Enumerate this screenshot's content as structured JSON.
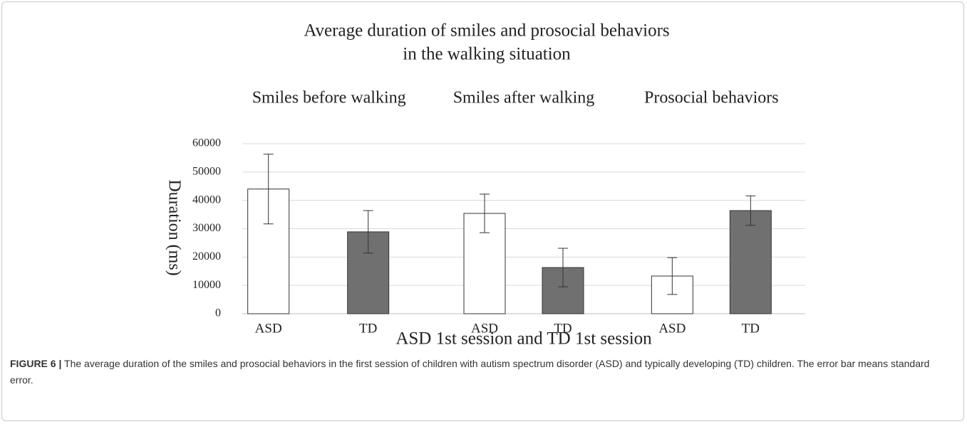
{
  "chart_data": {
    "type": "bar",
    "title": [
      "Average duration of smiles and prosocial behaviors",
      "in the walking situation"
    ],
    "categories": [
      "Smiles before walking",
      "Smiles after walking",
      "Prosocial behaviors"
    ],
    "series": [
      {
        "name": "ASD",
        "color": "#ffffff",
        "values": [
          44000,
          35400,
          13300
        ],
        "errors": [
          12300,
          6800,
          6500
        ]
      },
      {
        "name": "TD",
        "color": "#707070",
        "values": [
          28900,
          16300,
          36400
        ],
        "errors": [
          7500,
          6800,
          5200
        ]
      }
    ],
    "ylabel": "Duration (ms)",
    "xlabel": "ASD 1st session and TD 1st session",
    "ylim": [
      0,
      60000
    ],
    "yticks": [
      0,
      10000,
      20000,
      30000,
      40000,
      50000,
      60000
    ],
    "grid": true
  },
  "caption": {
    "label": "FIGURE 6 |",
    "text": "The average duration of the smiles and prosocial behaviors in the first session of children with autism spectrum disorder (ASD) and typically developing (TD) children. The error bar means standard error."
  }
}
